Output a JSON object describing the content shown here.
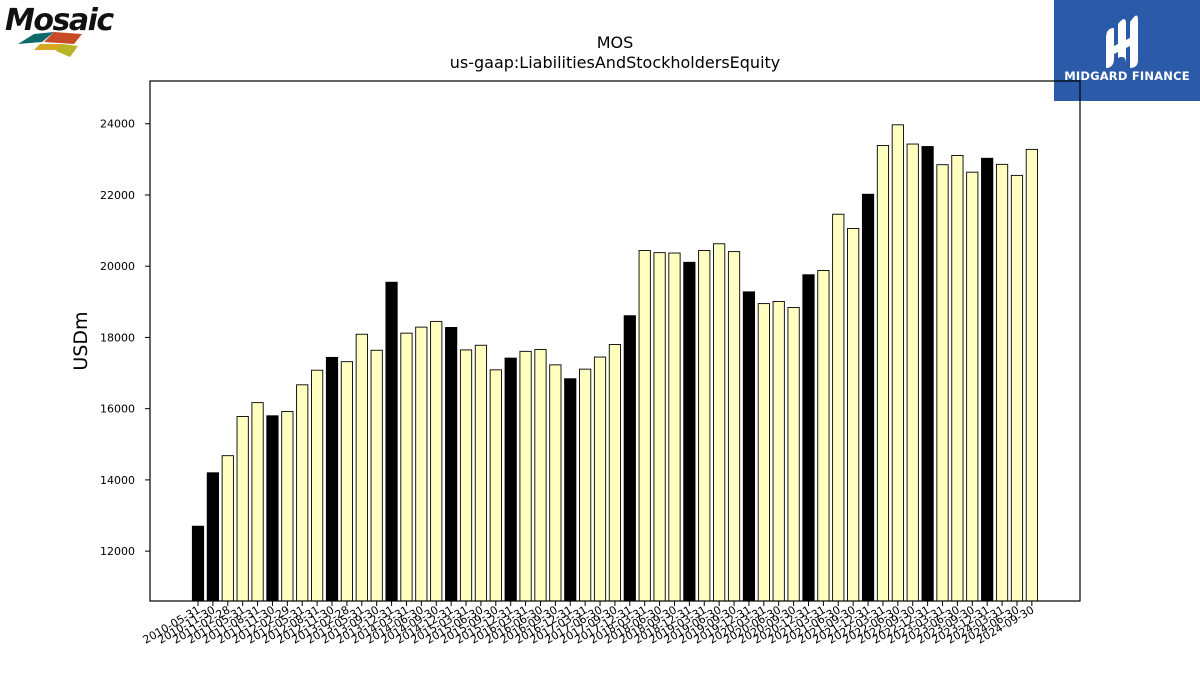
{
  "logos": {
    "left": {
      "name": "Mosaic",
      "icon": "mosaic-logo"
    },
    "right": {
      "name": "MIDGARD FINANCE",
      "icon": "midgard-finance-logo",
      "color": "#2b5aa8"
    }
  },
  "chart_data": {
    "type": "bar",
    "title": "MOS",
    "subtitle": "us-gaap:LiabilitiesAndStockholdersEquity",
    "xlabel": "",
    "ylabel": "USDm",
    "ylim": [
      10600,
      25200
    ],
    "yticks": [
      12000,
      14000,
      16000,
      18000,
      20000,
      22000,
      24000
    ],
    "grid": false,
    "colors": {
      "default": "#ffffc0",
      "highlight": "#000000",
      "edge": "#000000"
    },
    "highlight_rule": "fiscal year-end (12-31, or 05-31 through 2012)",
    "categories": [
      "2010-05-31",
      "2010-11-30",
      "2011-02-28",
      "2011-05-31",
      "2011-08-31",
      "2011-11-30",
      "2012-02-29",
      "2012-05-31",
      "2012-08-31",
      "2012-11-30",
      "2013-02-28",
      "2013-05-31",
      "2013-09-30",
      "2013-12-31",
      "2014-03-31",
      "2014-06-30",
      "2014-09-30",
      "2014-12-31",
      "2015-03-31",
      "2015-06-30",
      "2015-09-30",
      "2015-12-31",
      "2016-03-31",
      "2016-06-30",
      "2016-09-30",
      "2016-12-31",
      "2017-03-31",
      "2017-06-30",
      "2017-09-30",
      "2017-12-31",
      "2018-03-31",
      "2018-06-30",
      "2018-09-30",
      "2018-12-31",
      "2019-03-31",
      "2019-06-30",
      "2019-09-30",
      "2019-12-31",
      "2020-03-31",
      "2020-06-30",
      "2020-09-30",
      "2020-12-31",
      "2021-03-31",
      "2021-06-30",
      "2021-09-30",
      "2021-12-31",
      "2022-03-31",
      "2022-06-30",
      "2022-09-30",
      "2022-12-31",
      "2023-03-31",
      "2023-06-30",
      "2023-09-30",
      "2023-12-31",
      "2024-03-31",
      "2024-06-30",
      "2024-09-30"
    ],
    "values": [
      12700,
      14200,
      14680,
      15780,
      16170,
      15800,
      15920,
      16670,
      17080,
      17440,
      17320,
      18090,
      17640,
      19550,
      18120,
      18290,
      18450,
      18280,
      17650,
      17780,
      17090,
      17420,
      17610,
      17660,
      17230,
      16840,
      17110,
      17450,
      17800,
      18610,
      20440,
      20380,
      20370,
      20110,
      20440,
      20630,
      20410,
      19280,
      18950,
      19010,
      18840,
      19760,
      19880,
      21460,
      21060,
      22020,
      23390,
      23970,
      23430,
      23360,
      22850,
      23110,
      22640,
      23030,
      22860,
      22550,
      23280
    ],
    "highlight": [
      true,
      true,
      false,
      false,
      false,
      true,
      false,
      false,
      false,
      true,
      false,
      false,
      false,
      true,
      false,
      false,
      false,
      true,
      false,
      false,
      false,
      true,
      false,
      false,
      false,
      true,
      false,
      false,
      false,
      true,
      false,
      false,
      false,
      true,
      false,
      false,
      false,
      true,
      false,
      false,
      false,
      true,
      false,
      false,
      false,
      true,
      false,
      false,
      false,
      true,
      false,
      false,
      false,
      true,
      false,
      false,
      false
    ]
  }
}
